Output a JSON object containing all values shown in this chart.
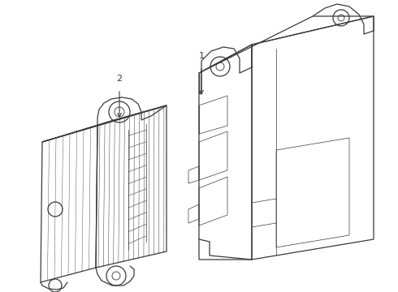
{
  "background_color": "#ffffff",
  "line_color": "#3a3a3a",
  "line_width": 0.9,
  "thin_lw": 0.5,
  "label1": "1",
  "label2": "2"
}
